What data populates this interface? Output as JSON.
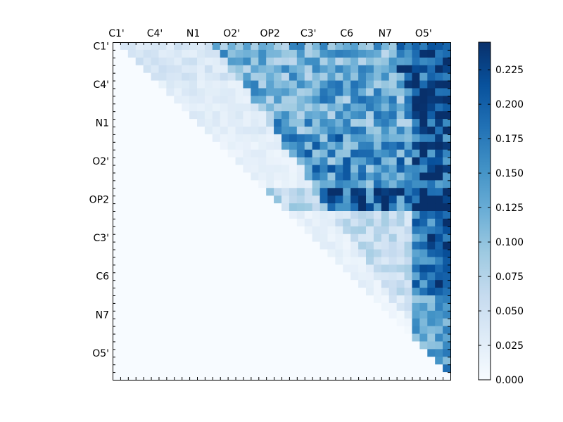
{
  "chart_data": {
    "type": "heatmap",
    "title": "",
    "shape": "lower-left-masked square matrix (upper triangle shown), 44 x 44 cells",
    "tick_labels": [
      "C1'",
      "C4'",
      "N1",
      "O2'",
      "OP2",
      "C3'",
      "C6",
      "N7",
      "O5'"
    ],
    "x_tick_position": "top",
    "colormap": "Blues",
    "colorbar": {
      "min": 0.0,
      "max": 0.245,
      "ticks": [
        0.0,
        0.025,
        0.05,
        0.075,
        0.1,
        0.125,
        0.15,
        0.175,
        0.2,
        0.225
      ],
      "tick_labels": [
        "0.000",
        "0.025",
        "0.050",
        "0.075",
        "0.100",
        "0.125",
        "0.150",
        "0.175",
        "0.200",
        "0.225"
      ]
    },
    "row_profile_approx": [
      {
        "rows": "1-5",
        "first_columns": 0.04,
        "middle_columns": 0.12,
        "last_columns": 0.2
      },
      {
        "rows": "6-12",
        "first_columns": 0.03,
        "middle_columns": 0.13,
        "last_columns": 0.22
      },
      {
        "rows": "13-19",
        "first_columns": 0.02,
        "middle_columns": 0.15,
        "last_columns": 0.2
      },
      {
        "rows": "20-22",
        "first_columns": 0.07,
        "middle_columns": 0.2,
        "last_columns": 0.24
      },
      {
        "rows": "23-33",
        "first_columns": 0.02,
        "middle_columns": 0.06,
        "last_columns": 0.2
      },
      {
        "rows": "34-43",
        "first_columns": 0.01,
        "middle_columns": 0.04,
        "last_columns": 0.15
      }
    ],
    "lower_triangle_value": 0.0,
    "grid": false,
    "legend": "none"
  }
}
